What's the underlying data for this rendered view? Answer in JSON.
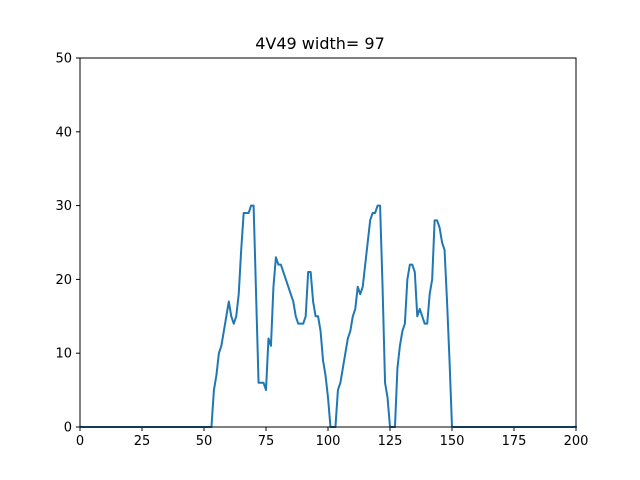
{
  "chart_data": {
    "type": "line",
    "title": "4V49 width= 97",
    "xlabel": "",
    "ylabel": "",
    "xlim": [
      0,
      200
    ],
    "ylim": [
      0,
      50
    ],
    "xticks": [
      0,
      25,
      50,
      75,
      100,
      125,
      150,
      175,
      200
    ],
    "yticks": [
      0,
      10,
      20,
      30,
      40,
      50
    ],
    "grid": false,
    "legend": "none",
    "line_color": "#1f77b4",
    "series": [
      {
        "x": [
          0,
          53,
          54,
          55,
          56,
          57,
          58,
          59,
          60,
          61,
          62,
          63,
          64,
          65,
          66,
          67,
          68,
          69,
          70,
          71,
          72,
          73,
          74,
          75,
          76,
          77,
          78,
          79,
          80,
          81,
          82,
          83,
          84,
          85,
          86,
          87,
          88,
          89,
          90,
          91,
          92,
          93,
          94,
          95,
          96,
          97,
          98,
          99,
          100,
          101,
          102,
          103,
          104,
          105,
          106,
          107,
          108,
          109,
          110,
          111,
          112,
          113,
          114,
          115,
          116,
          117,
          118,
          119,
          120,
          121,
          122,
          123,
          124,
          125,
          126,
          127,
          128,
          129,
          130,
          131,
          132,
          133,
          134,
          135,
          136,
          137,
          138,
          139,
          140,
          141,
          142,
          143,
          144,
          145,
          146,
          147,
          148,
          149,
          150,
          200
        ],
        "y": [
          0,
          0,
          5,
          7,
          10,
          11,
          13,
          15,
          17,
          15,
          14,
          15,
          18,
          24,
          29,
          29,
          29,
          30,
          30,
          18,
          6,
          6,
          6,
          5,
          12,
          11,
          19,
          23,
          22,
          22,
          21,
          20,
          19,
          18,
          17,
          15,
          14,
          14,
          14,
          15,
          21,
          21,
          17,
          15,
          15,
          13,
          9,
          7,
          4,
          0,
          0,
          0,
          5,
          6,
          8,
          10,
          12,
          13,
          15,
          16,
          19,
          18,
          19,
          22,
          25,
          28,
          29,
          29,
          30,
          30,
          19,
          6,
          4,
          0,
          0,
          0,
          8,
          11,
          13,
          14,
          20,
          22,
          22,
          21,
          15,
          16,
          15,
          14,
          14,
          18,
          20,
          28,
          28,
          27,
          25,
          24,
          17,
          9,
          0,
          0
        ]
      }
    ]
  }
}
